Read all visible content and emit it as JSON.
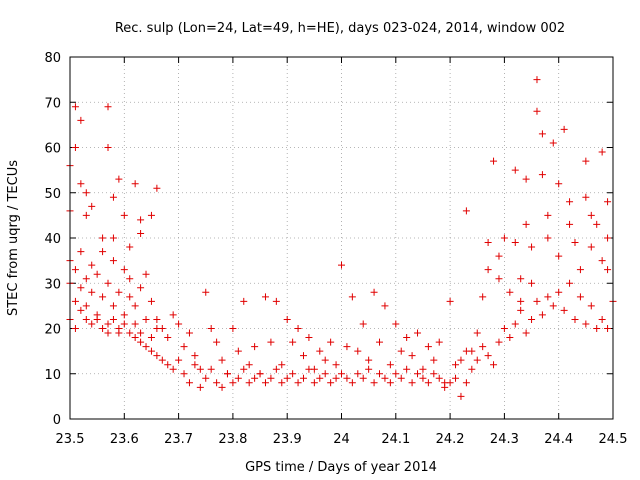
{
  "chart_data": {
    "type": "scatter",
    "title": "Rec. sulp (Lon=24, Lat=49, h=HE), days 023-024, 2014, window 002",
    "xlabel": "GPS time / Days of year 2014",
    "ylabel": "STEC from uqrg / TECUs",
    "xlim": [
      23.5,
      24.5
    ],
    "ylim": [
      0,
      80
    ],
    "xticks": [
      "23.5",
      "23.6",
      "23.7",
      "23.8",
      "23.9",
      "24",
      "24.1",
      "24.2",
      "24.3",
      "24.4",
      "24.5"
    ],
    "yticks": [
      "0",
      "10",
      "20",
      "30",
      "40",
      "50",
      "60",
      "70",
      "80"
    ],
    "grid": true,
    "marker": "plus",
    "color": "#e00000",
    "points": [
      [
        23.5,
        56
      ],
      [
        23.5,
        46
      ],
      [
        23.51,
        60
      ],
      [
        23.51,
        69
      ],
      [
        23.52,
        66
      ],
      [
        23.52,
        52
      ],
      [
        23.53,
        45
      ],
      [
        23.53,
        50
      ],
      [
        23.54,
        47
      ],
      [
        23.56,
        40
      ],
      [
        23.57,
        69
      ],
      [
        23.57,
        60
      ],
      [
        23.58,
        49
      ],
      [
        23.58,
        40
      ],
      [
        23.59,
        53
      ],
      [
        23.6,
        45
      ],
      [
        23.61,
        38
      ],
      [
        23.62,
        52
      ],
      [
        23.63,
        44
      ],
      [
        23.63,
        41
      ],
      [
        23.65,
        45
      ],
      [
        23.66,
        51
      ],
      [
        23.5,
        35
      ],
      [
        23.5,
        30
      ],
      [
        23.51,
        26
      ],
      [
        23.51,
        33
      ],
      [
        23.52,
        29
      ],
      [
        23.52,
        37
      ],
      [
        23.53,
        31
      ],
      [
        23.53,
        25
      ],
      [
        23.54,
        34
      ],
      [
        23.54,
        28
      ],
      [
        23.55,
        23
      ],
      [
        23.55,
        32
      ],
      [
        23.56,
        37
      ],
      [
        23.56,
        27
      ],
      [
        23.57,
        21
      ],
      [
        23.57,
        30
      ],
      [
        23.58,
        35
      ],
      [
        23.58,
        25
      ],
      [
        23.59,
        19
      ],
      [
        23.59,
        28
      ],
      [
        23.6,
        33
      ],
      [
        23.6,
        23
      ],
      [
        23.61,
        27
      ],
      [
        23.61,
        31
      ],
      [
        23.62,
        21
      ],
      [
        23.62,
        25
      ],
      [
        23.63,
        19
      ],
      [
        23.63,
        29
      ],
      [
        23.64,
        32
      ],
      [
        23.64,
        22
      ],
      [
        23.65,
        18
      ],
      [
        23.65,
        26
      ],
      [
        23.66,
        20
      ],
      [
        23.5,
        22
      ],
      [
        23.51,
        20
      ],
      [
        23.52,
        24
      ],
      [
        23.53,
        22
      ],
      [
        23.54,
        21
      ],
      [
        23.55,
        22
      ],
      [
        23.56,
        20
      ],
      [
        23.57,
        19
      ],
      [
        23.58,
        22
      ],
      [
        23.59,
        20
      ],
      [
        23.6,
        21
      ],
      [
        23.61,
        19
      ],
      [
        23.62,
        18
      ],
      [
        23.63,
        17
      ],
      [
        23.64,
        16
      ],
      [
        23.65,
        15
      ],
      [
        23.66,
        14
      ],
      [
        23.67,
        13
      ],
      [
        23.68,
        12
      ],
      [
        23.69,
        11
      ],
      [
        23.66,
        22
      ],
      [
        23.67,
        20
      ],
      [
        23.68,
        18
      ],
      [
        23.69,
        23
      ],
      [
        23.7,
        21
      ],
      [
        23.71,
        16
      ],
      [
        23.72,
        19
      ],
      [
        23.73,
        14
      ],
      [
        23.74,
        11
      ],
      [
        23.75,
        28
      ],
      [
        23.76,
        20
      ],
      [
        23.77,
        17
      ],
      [
        23.78,
        13
      ],
      [
        23.79,
        10
      ],
      [
        23.8,
        20
      ],
      [
        23.81,
        15
      ],
      [
        23.82,
        26
      ],
      [
        23.83,
        12
      ],
      [
        23.84,
        16
      ],
      [
        23.85,
        10
      ],
      [
        23.86,
        27
      ],
      [
        23.87,
        17
      ],
      [
        23.88,
        26
      ],
      [
        23.89,
        12
      ],
      [
        23.9,
        22
      ],
      [
        23.91,
        17
      ],
      [
        23.92,
        20
      ],
      [
        23.93,
        14
      ],
      [
        23.94,
        18
      ],
      [
        23.95,
        11
      ],
      [
        23.96,
        15
      ],
      [
        23.97,
        13
      ],
      [
        23.98,
        17
      ],
      [
        23.99,
        12
      ],
      [
        23.7,
        13
      ],
      [
        23.71,
        10
      ],
      [
        23.72,
        8
      ],
      [
        23.73,
        12
      ],
      [
        23.74,
        7
      ],
      [
        23.75,
        9
      ],
      [
        23.76,
        11
      ],
      [
        23.77,
        8
      ],
      [
        23.78,
        7
      ],
      [
        23.79,
        10
      ],
      [
        23.8,
        8
      ],
      [
        23.81,
        9
      ],
      [
        23.82,
        11
      ],
      [
        23.83,
        8
      ],
      [
        23.84,
        9
      ],
      [
        23.85,
        10
      ],
      [
        23.86,
        8
      ],
      [
        23.87,
        9
      ],
      [
        23.88,
        11
      ],
      [
        23.89,
        8
      ],
      [
        23.9,
        9
      ],
      [
        23.91,
        10
      ],
      [
        23.92,
        8
      ],
      [
        23.93,
        9
      ],
      [
        23.94,
        11
      ],
      [
        23.95,
        8
      ],
      [
        23.96,
        9
      ],
      [
        23.97,
        10
      ],
      [
        23.98,
        8
      ],
      [
        23.99,
        9
      ],
      [
        24.0,
        34
      ],
      [
        24.01,
        16
      ],
      [
        24.02,
        27
      ],
      [
        24.03,
        15
      ],
      [
        24.04,
        21
      ],
      [
        24.05,
        13
      ],
      [
        24.06,
        28
      ],
      [
        24.07,
        17
      ],
      [
        24.08,
        25
      ],
      [
        24.09,
        12
      ],
      [
        24.1,
        21
      ],
      [
        24.11,
        15
      ],
      [
        24.12,
        18
      ],
      [
        24.13,
        14
      ],
      [
        24.14,
        19
      ],
      [
        24.15,
        11
      ],
      [
        24.16,
        16
      ],
      [
        24.17,
        13
      ],
      [
        24.18,
        17
      ],
      [
        24.19,
        8
      ],
      [
        24.2,
        26
      ],
      [
        24.21,
        12
      ],
      [
        24.0,
        10
      ],
      [
        24.01,
        9
      ],
      [
        24.02,
        8
      ],
      [
        24.03,
        10
      ],
      [
        24.04,
        9
      ],
      [
        24.05,
        11
      ],
      [
        24.06,
        8
      ],
      [
        24.07,
        10
      ],
      [
        24.08,
        9
      ],
      [
        24.09,
        8
      ],
      [
        24.1,
        10
      ],
      [
        24.11,
        9
      ],
      [
        24.12,
        11
      ],
      [
        24.13,
        8
      ],
      [
        24.14,
        10
      ],
      [
        24.15,
        9
      ],
      [
        24.16,
        8
      ],
      [
        24.17,
        10
      ],
      [
        24.18,
        9
      ],
      [
        24.19,
        7
      ],
      [
        24.2,
        8
      ],
      [
        24.21,
        9
      ],
      [
        24.22,
        5
      ],
      [
        24.23,
        8
      ],
      [
        24.22,
        13
      ],
      [
        24.23,
        46
      ],
      [
        24.24,
        15
      ],
      [
        24.25,
        19
      ],
      [
        24.26,
        27
      ],
      [
        24.27,
        33
      ],
      [
        24.27,
        39
      ],
      [
        24.28,
        57
      ],
      [
        24.29,
        31
      ],
      [
        24.29,
        36
      ],
      [
        24.3,
        40
      ],
      [
        24.31,
        28
      ],
      [
        24.32,
        55
      ],
      [
        24.32,
        39
      ],
      [
        24.33,
        31
      ],
      [
        24.33,
        26
      ],
      [
        24.34,
        53
      ],
      [
        24.34,
        43
      ],
      [
        24.35,
        38
      ],
      [
        24.35,
        30
      ],
      [
        24.36,
        75
      ],
      [
        24.36,
        68
      ],
      [
        24.37,
        63
      ],
      [
        24.37,
        54
      ],
      [
        24.38,
        45
      ],
      [
        24.38,
        40
      ],
      [
        24.39,
        61
      ],
      [
        24.4,
        52
      ],
      [
        24.4,
        36
      ],
      [
        24.41,
        64
      ],
      [
        24.42,
        43
      ],
      [
        24.42,
        48
      ],
      [
        24.43,
        39
      ],
      [
        24.44,
        33
      ],
      [
        24.45,
        57
      ],
      [
        24.45,
        49
      ],
      [
        24.46,
        45
      ],
      [
        24.46,
        38
      ],
      [
        24.47,
        43
      ],
      [
        24.48,
        59
      ],
      [
        24.48,
        35
      ],
      [
        24.49,
        48
      ],
      [
        24.49,
        40
      ],
      [
        24.23,
        15
      ],
      [
        24.24,
        11
      ],
      [
        24.25,
        13
      ],
      [
        24.26,
        16
      ],
      [
        24.27,
        14
      ],
      [
        24.28,
        12
      ],
      [
        24.29,
        17
      ],
      [
        24.3,
        20
      ],
      [
        24.31,
        18
      ],
      [
        24.32,
        21
      ],
      [
        24.33,
        24
      ],
      [
        24.34,
        19
      ],
      [
        24.35,
        22
      ],
      [
        24.36,
        26
      ],
      [
        24.37,
        23
      ],
      [
        24.38,
        27
      ],
      [
        24.39,
        25
      ],
      [
        24.4,
        28
      ],
      [
        24.41,
        24
      ],
      [
        24.42,
        30
      ],
      [
        24.43,
        22
      ],
      [
        24.44,
        27
      ],
      [
        24.45,
        21
      ],
      [
        24.46,
        25
      ],
      [
        24.47,
        20
      ],
      [
        24.48,
        22
      ],
      [
        24.49,
        20
      ],
      [
        24.49,
        33
      ],
      [
        24.5,
        26
      ]
    ]
  }
}
